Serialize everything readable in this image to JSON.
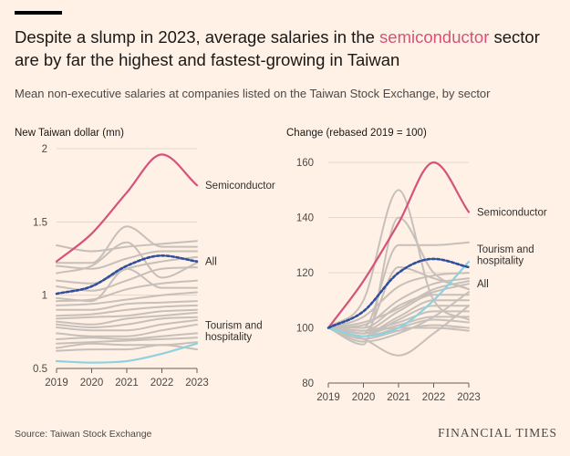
{
  "header": {
    "title_before": "Despite a slump in 2023, average salaries in the ",
    "title_highlight": "semiconductor",
    "title_after": " sector are by far the highest and fastest-growing in Taiwan",
    "subtitle": "Mean non-executive salaries at companies listed on the Taiwan Stock Exchange, by sector"
  },
  "footer": {
    "source": "Source: Taiwan Stock Exchange",
    "brand": "FINANCIAL TIMES"
  },
  "colors": {
    "semiconductor": "#d5537a",
    "all": "#2e4f9e",
    "tourism": "#8dd2e0",
    "other": "#c7bfba",
    "grid": "#e3d6cc",
    "baseline": "#66605c"
  },
  "chart_data": [
    {
      "type": "line",
      "title": "New Taiwan dollar (mn)",
      "x": [
        2019,
        2020,
        2021,
        2022,
        2023
      ],
      "xtick_labels": [
        "2019",
        "2020",
        "2021",
        "2022",
        "2023"
      ],
      "ylim": [
        0.5,
        2
      ],
      "yticks": [
        0.5,
        1,
        1.5,
        2
      ],
      "ytick_labels": [
        "0.5",
        "1",
        "1.5",
        "2"
      ],
      "series": [
        {
          "name": "Other",
          "kind": "other",
          "values": [
            1.34,
            1.3,
            1.33,
            1.35,
            1.37
          ]
        },
        {
          "name": "Other",
          "kind": "other",
          "values": [
            1.22,
            1.22,
            1.47,
            1.33,
            1.33
          ]
        },
        {
          "name": "Other",
          "kind": "other",
          "values": [
            1.2,
            1.18,
            1.25,
            1.3,
            1.3
          ]
        },
        {
          "name": "Other",
          "kind": "other",
          "values": [
            1.15,
            1.2,
            1.36,
            1.12,
            1.22
          ]
        },
        {
          "name": "Other",
          "kind": "other",
          "values": [
            1.1,
            1.08,
            1.18,
            1.23,
            1.26
          ]
        },
        {
          "name": "Other",
          "kind": "other",
          "values": [
            1.06,
            1.03,
            1.1,
            1.18,
            1.19
          ]
        },
        {
          "name": "Other",
          "kind": "other",
          "values": [
            0.98,
            0.96,
            1.18,
            1.05,
            1.05
          ]
        },
        {
          "name": "Other",
          "kind": "other",
          "values": [
            0.96,
            0.97,
            1.04,
            1.08,
            1.1
          ]
        },
        {
          "name": "Other",
          "kind": "other",
          "values": [
            0.93,
            0.94,
            0.97,
            1.0,
            1.02
          ]
        },
        {
          "name": "Other",
          "kind": "other",
          "values": [
            0.9,
            0.9,
            0.94,
            0.95,
            0.96
          ]
        },
        {
          "name": "Other",
          "kind": "other",
          "values": [
            0.86,
            0.87,
            0.9,
            0.92,
            0.93
          ]
        },
        {
          "name": "Other",
          "kind": "other",
          "values": [
            0.84,
            0.85,
            0.86,
            0.89,
            0.9
          ]
        },
        {
          "name": "Other",
          "kind": "other",
          "values": [
            0.82,
            0.8,
            0.84,
            0.86,
            0.88
          ]
        },
        {
          "name": "Other",
          "kind": "other",
          "values": [
            0.8,
            0.78,
            0.8,
            0.84,
            0.85
          ]
        },
        {
          "name": "Other",
          "kind": "other",
          "values": [
            0.78,
            0.76,
            0.76,
            0.8,
            0.83
          ]
        },
        {
          "name": "Other",
          "kind": "other",
          "values": [
            0.74,
            0.72,
            0.72,
            0.76,
            0.8
          ]
        },
        {
          "name": "Other",
          "kind": "other",
          "values": [
            0.7,
            0.71,
            0.7,
            0.72,
            0.74
          ]
        },
        {
          "name": "Other",
          "kind": "other",
          "values": [
            0.67,
            0.68,
            0.69,
            0.7,
            0.71
          ]
        },
        {
          "name": "Other",
          "kind": "other",
          "values": [
            0.64,
            0.67,
            0.66,
            0.66,
            0.68
          ]
        },
        {
          "name": "Other",
          "kind": "other",
          "values": [
            0.62,
            0.63,
            0.63,
            0.66,
            0.63
          ]
        },
        {
          "name": "Semiconductor",
          "kind": "semiconductor",
          "values": [
            1.23,
            1.42,
            1.7,
            1.96,
            1.75
          ]
        },
        {
          "name": "All",
          "kind": "all",
          "values": [
            1.01,
            1.06,
            1.2,
            1.27,
            1.23
          ]
        },
        {
          "name": "Tourism and hospitality",
          "kind": "tourism",
          "values": [
            0.55,
            0.54,
            0.55,
            0.6,
            0.67
          ]
        }
      ],
      "labels": [
        {
          "kind": "semiconductor",
          "lines": [
            "Semiconductor"
          ]
        },
        {
          "kind": "all",
          "lines": [
            "All"
          ]
        },
        {
          "kind": "tourism",
          "lines": [
            "Tourism and",
            "hospitality"
          ]
        }
      ]
    },
    {
      "type": "line",
      "title": "Change (rebased 2019 = 100)",
      "x": [
        2019,
        2020,
        2021,
        2022,
        2023
      ],
      "xtick_labels": [
        "2019",
        "2020",
        "2021",
        "2022",
        "2023"
      ],
      "ylim": [
        80,
        165
      ],
      "yticks": [
        80,
        100,
        120,
        140,
        160
      ],
      "ytick_labels": [
        "80",
        "100",
        "120",
        "140",
        "160"
      ],
      "series": [
        {
          "name": "Other",
          "kind": "other",
          "values": [
            100,
            110,
            150,
            110,
            103
          ]
        },
        {
          "name": "Other",
          "kind": "other",
          "values": [
            100,
            94,
            140,
            120,
            114
          ]
        },
        {
          "name": "Other",
          "kind": "other",
          "values": [
            100,
            100,
            130,
            130,
            131
          ]
        },
        {
          "name": "Other",
          "kind": "other",
          "values": [
            100,
            98,
            122,
            118,
            114
          ]
        },
        {
          "name": "Other",
          "kind": "other",
          "values": [
            100,
            96,
            90,
            98,
            108
          ]
        },
        {
          "name": "Other",
          "kind": "other",
          "values": [
            100,
            104,
            115,
            119,
            120
          ]
        },
        {
          "name": "Other",
          "kind": "other",
          "values": [
            100,
            101,
            110,
            116,
            118
          ]
        },
        {
          "name": "Other",
          "kind": "other",
          "values": [
            100,
            100,
            108,
            113,
            116
          ]
        },
        {
          "name": "Other",
          "kind": "other",
          "values": [
            100,
            99,
            106,
            112,
            112
          ]
        },
        {
          "name": "Other",
          "kind": "other",
          "values": [
            100,
            98,
            104,
            110,
            110
          ]
        },
        {
          "name": "Other",
          "kind": "other",
          "values": [
            100,
            97,
            103,
            108,
            108
          ]
        },
        {
          "name": "Other",
          "kind": "other",
          "values": [
            100,
            99,
            102,
            106,
            106
          ]
        },
        {
          "name": "Other",
          "kind": "other",
          "values": [
            100,
            98,
            101,
            104,
            104
          ]
        },
        {
          "name": "Other",
          "kind": "other",
          "values": [
            100,
            97,
            100,
            103,
            102
          ]
        },
        {
          "name": "Other",
          "kind": "other",
          "values": [
            100,
            96,
            99,
            101,
            100
          ]
        },
        {
          "name": "Other",
          "kind": "other",
          "values": [
            100,
            99,
            100,
            100,
            99
          ]
        },
        {
          "name": "Other",
          "kind": "other",
          "values": [
            100,
            95,
            98,
            104,
            113
          ]
        },
        {
          "name": "Other",
          "kind": "other",
          "values": [
            100,
            102,
            107,
            114,
            117
          ]
        },
        {
          "name": "Semiconductor",
          "kind": "semiconductor",
          "values": [
            100,
            117,
            138,
            160,
            142
          ]
        },
        {
          "name": "All",
          "kind": "all",
          "values": [
            100,
            106,
            120,
            125,
            122
          ]
        },
        {
          "name": "Tourism and hospitality",
          "kind": "tourism",
          "values": [
            100,
            97,
            100,
            110,
            124
          ]
        }
      ],
      "labels": [
        {
          "kind": "semiconductor",
          "lines": [
            "Semiconductor"
          ]
        },
        {
          "kind": "tourism",
          "lines": [
            "Tourism and",
            "hospitality"
          ]
        },
        {
          "kind": "all",
          "lines": [
            "All"
          ]
        }
      ]
    }
  ]
}
